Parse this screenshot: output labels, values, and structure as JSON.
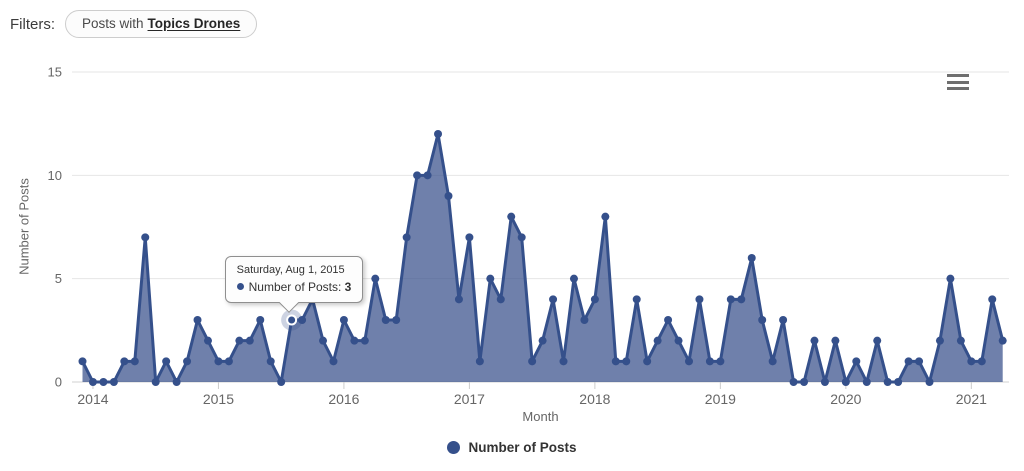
{
  "filters": {
    "label": "Filters:",
    "chip_prefix": "Posts with",
    "chip_topic": "Topics Drones"
  },
  "tooltip": {
    "date": "Saturday, Aug 1, 2015",
    "series_label": "Number of Posts",
    "separator": ": ",
    "value": "3"
  },
  "legend": {
    "label": "Number of Posts",
    "position": "bottom-center"
  },
  "colors": {
    "series": "#35508b",
    "series_fill": "rgba(55,79,139,0.72)",
    "halo": "rgba(55,79,139,0.25)",
    "grid": "#e6e6e6",
    "axis_line": "#d0d0d0",
    "tick": "#cccccc",
    "axis_label": "#666666"
  },
  "chart_data": {
    "type": "area",
    "title": "",
    "xlabel": "Month",
    "ylabel": "Number of Posts",
    "x_interval": "month",
    "x_start": "2013-12",
    "x_end": "2021-04",
    "x_tick_labels": [
      "2014",
      "2015",
      "2016",
      "2017",
      "2018",
      "2019",
      "2020",
      "2021"
    ],
    "y_ticks": [
      0,
      5,
      10,
      15
    ],
    "ylim": [
      0,
      15
    ],
    "grid": "horizontal",
    "series": [
      {
        "name": "Number of Posts",
        "values": [
          1,
          0,
          0,
          0,
          1,
          1,
          7,
          0,
          1,
          0,
          1,
          3,
          2,
          1,
          1,
          2,
          2,
          3,
          1,
          0,
          3,
          3,
          4,
          2,
          1,
          3,
          2,
          2,
          5,
          3,
          3,
          7,
          10,
          10,
          12,
          9,
          4,
          7,
          1,
          5,
          4,
          8,
          7,
          1,
          2,
          4,
          1,
          5,
          3,
          4,
          8,
          1,
          1,
          4,
          1,
          2,
          3,
          2,
          1,
          4,
          1,
          1,
          4,
          4,
          6,
          3,
          1,
          3,
          0,
          0,
          2,
          0,
          2,
          0,
          1,
          0,
          2,
          0,
          0,
          1,
          1,
          0,
          2,
          5,
          2,
          1,
          1,
          4,
          2
        ]
      }
    ],
    "highlight": {
      "index": 20,
      "value": 3,
      "date": "Saturday, Aug 1, 2015"
    }
  }
}
